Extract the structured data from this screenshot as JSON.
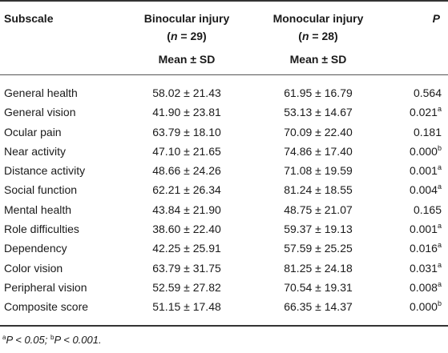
{
  "header": {
    "subscale": "Subscale",
    "binocular": {
      "title": "Binocular injury",
      "n_open": "(",
      "n_letter": "n",
      "n_rest": " = 29)",
      "stat": "Mean ± SD"
    },
    "monocular": {
      "title": "Monocular injury",
      "n_open": "(",
      "n_letter": "n",
      "n_rest": " = 28)",
      "stat": "Mean ± SD"
    },
    "p": "P"
  },
  "rows": [
    {
      "subscale": "General health",
      "binocular": "58.02 ± 21.43",
      "monocular": "61.95 ± 16.79",
      "p": "0.564",
      "sup": ""
    },
    {
      "subscale": "General vision",
      "binocular": "41.90 ± 23.81",
      "monocular": "53.13 ± 14.67",
      "p": "0.021",
      "sup": "a"
    },
    {
      "subscale": "Ocular pain",
      "binocular": "63.79 ± 18.10",
      "monocular": "70.09 ± 22.40",
      "p": "0.181",
      "sup": ""
    },
    {
      "subscale": "Near activity",
      "binocular": "47.10 ± 21.65",
      "monocular": "74.86 ± 17.40",
      "p": "0.000",
      "sup": "b"
    },
    {
      "subscale": "Distance activity",
      "binocular": "48.66 ± 24.26",
      "monocular": "71.08 ± 19.59",
      "p": "0.001",
      "sup": "a"
    },
    {
      "subscale": "Social function",
      "binocular": "62.21 ± 26.34",
      "monocular": "81.24 ± 18.55",
      "p": "0.004",
      "sup": "a"
    },
    {
      "subscale": "Mental health",
      "binocular": "43.84 ± 21.90",
      "monocular": "48.75 ± 21.07",
      "p": "0.165",
      "sup": ""
    },
    {
      "subscale": "Role difficulties",
      "binocular": "38.60 ± 22.40",
      "monocular": "59.37 ± 19.13",
      "p": "0.001",
      "sup": "a"
    },
    {
      "subscale": "Dependency",
      "binocular": "42.25 ± 25.91",
      "monocular": "57.59 ± 25.25",
      "p": "0.016",
      "sup": "a"
    },
    {
      "subscale": "Color vision",
      "binocular": "63.79 ± 31.75",
      "monocular": "81.25 ± 24.18",
      "p": "0.031",
      "sup": "a"
    },
    {
      "subscale": "Peripheral vision",
      "binocular": "52.59 ± 27.82",
      "monocular": "70.54 ± 19.31",
      "p": "0.008",
      "sup": "a"
    },
    {
      "subscale": "Composite score",
      "binocular": "51.15 ± 17.48",
      "monocular": "66.35 ± 14.37",
      "p": "0.000",
      "sup": "b"
    }
  ],
  "footnote": {
    "a_mark": "a",
    "a_text": "P < 0.05; ",
    "b_mark": "b",
    "b_text": "P < 0.001."
  }
}
